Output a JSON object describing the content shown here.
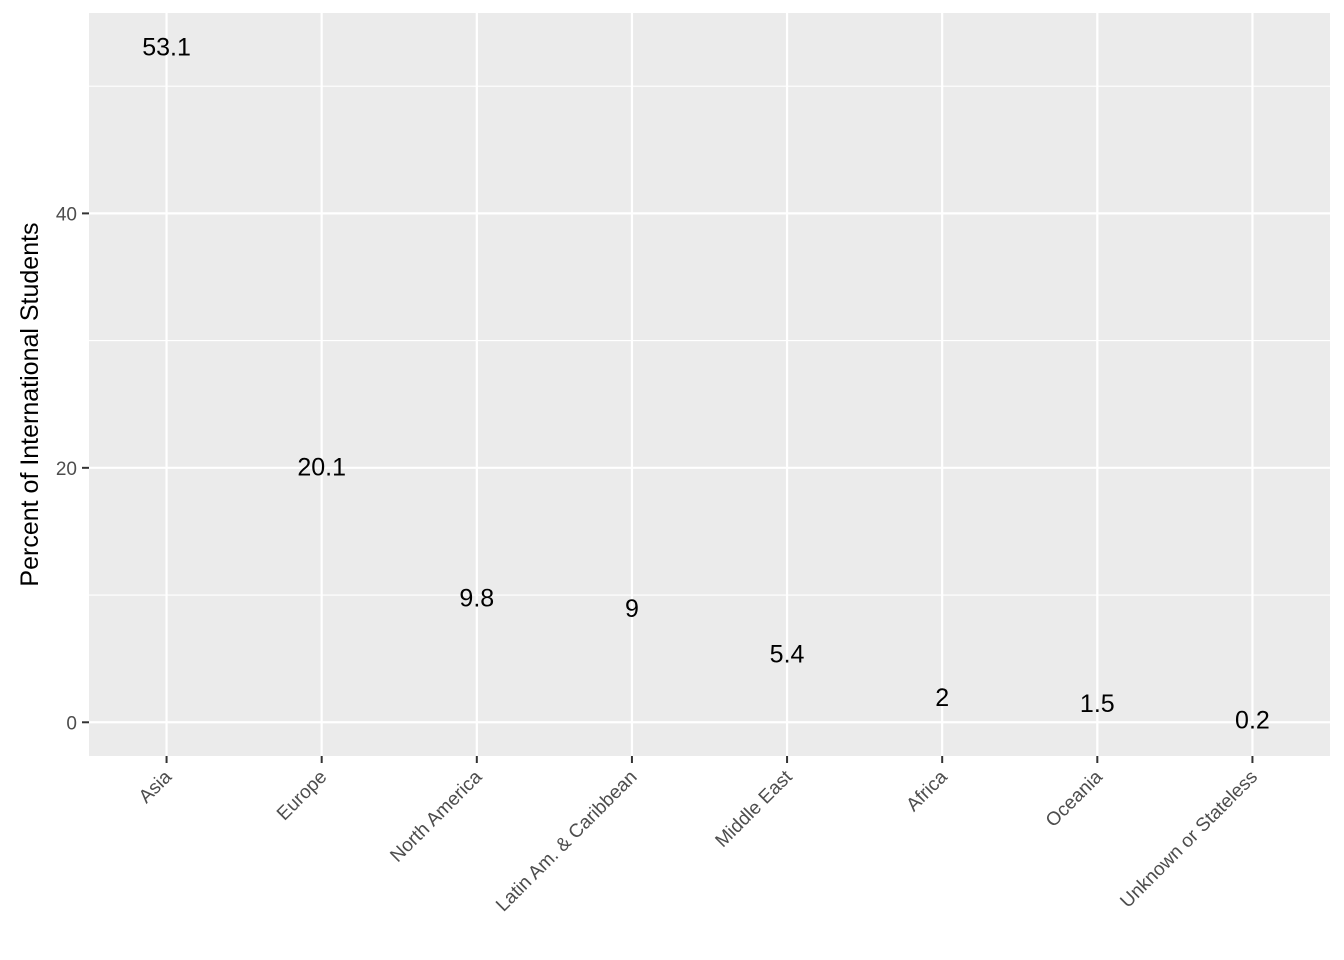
{
  "chart_data": {
    "type": "scatter",
    "title": "",
    "xlabel": "",
    "ylabel": "Percent of International Students",
    "categories": [
      "Asia",
      "Europe",
      "North America",
      "Latin Am. & Caribbean",
      "Middle East",
      "Africa",
      "Oceania",
      "Unknown or Stateless"
    ],
    "values": [
      53.1,
      20.1,
      9.8,
      9,
      5.4,
      2,
      1.5,
      0.2
    ],
    "data_labels": [
      "53.1",
      "20.1",
      "9.8",
      "9",
      "5.4",
      "2",
      "1.5",
      "0.2"
    ],
    "ylim": [
      -2.65,
      55.75
    ],
    "yticks": [
      0,
      20,
      40
    ],
    "ytick_labels": [
      "0",
      "20",
      "40"
    ],
    "grid": true,
    "legend": "none",
    "colors": {
      "panel_background": "#ebebeb",
      "grid": "#ffffff",
      "text": "#000000",
      "tick_text": "#4d4d4d"
    }
  }
}
